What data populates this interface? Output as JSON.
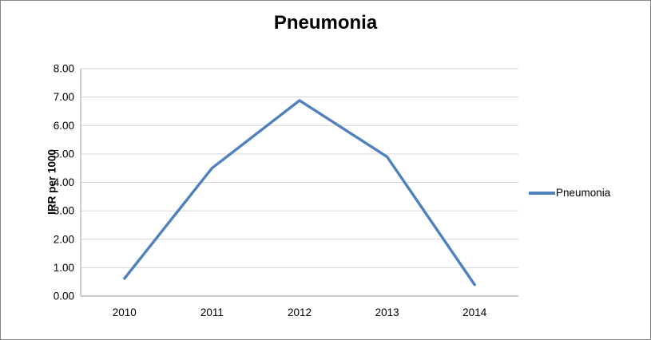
{
  "chart_data": {
    "type": "line",
    "title": "Pneumonia",
    "xlabel": "",
    "ylabel": "IRR per 1000",
    "categories": [
      "2010",
      "2011",
      "2012",
      "2013",
      "2014"
    ],
    "series": [
      {
        "name": "Pneumonia",
        "color": "#4F81BD",
        "values": [
          0.62,
          4.5,
          6.88,
          4.9,
          0.4
        ]
      }
    ],
    "ylim": [
      0,
      8
    ],
    "ytick_step": 1,
    "ytick_decimals": 2,
    "ytick_labels": [
      "0.00",
      "1.00",
      "2.00",
      "3.00",
      "4.00",
      "5.00",
      "6.00",
      "7.00",
      "8.00"
    ],
    "grid": "horizontal-major",
    "legend_position": "right"
  },
  "colors": {
    "line": "#4F81BD",
    "gridline": "#D6D6D6",
    "axis": "#9B9B9B",
    "text": "#000000",
    "border": "#858585",
    "background": "#FFFFFF"
  }
}
